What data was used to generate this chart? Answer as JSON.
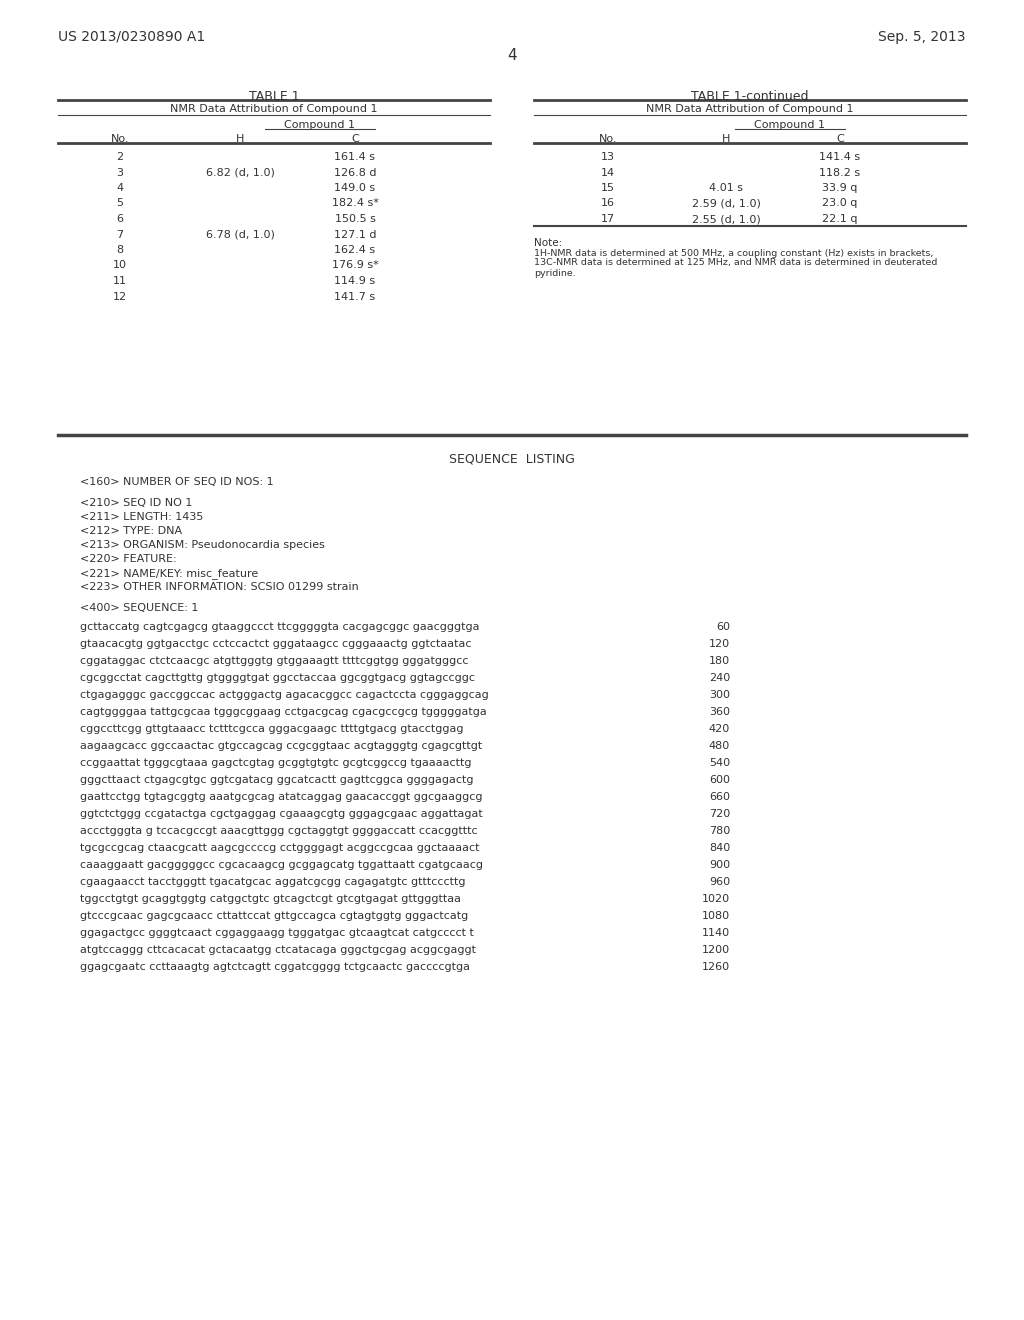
{
  "bg_color": "#ffffff",
  "header_left": "US 2013/0230890 A1",
  "header_right": "Sep. 5, 2013",
  "page_number": "4",
  "table1_title": "TABLE 1",
  "table1cont_title": "TABLE 1-continued",
  "table1_subtitle": "NMR Data Attribution of Compound 1",
  "table1cont_subtitle": "NMR Data Attribution of Compound 1",
  "compound_label": "Compound 1",
  "table1_rows": [
    [
      "2",
      "",
      "161.4 s"
    ],
    [
      "3",
      "6.82 (d, 1.0)",
      "126.8 d"
    ],
    [
      "4",
      "",
      "149.0 s"
    ],
    [
      "5",
      "",
      "182.4 s*"
    ],
    [
      "6",
      "",
      "150.5 s"
    ],
    [
      "7",
      "6.78 (d, 1.0)",
      "127.1 d"
    ],
    [
      "8",
      "",
      "162.4 s"
    ],
    [
      "10",
      "",
      "176.9 s*"
    ],
    [
      "11",
      "",
      "114.9 s"
    ],
    [
      "12",
      "",
      "141.7 s"
    ]
  ],
  "table1cont_rows": [
    [
      "13",
      "",
      "141.4 s"
    ],
    [
      "14",
      "",
      "118.2 s"
    ],
    [
      "15",
      "4.01 s",
      "33.9 q"
    ],
    [
      "16",
      "2.59 (d, 1.0)",
      "23.0 q"
    ],
    [
      "17",
      "2.55 (d, 1.0)",
      "22.1 q"
    ]
  ],
  "note_label": "Note:",
  "note_lines": [
    "1H-NMR data is determined at 500 MHz, a coupling constant (Hz) exists in brackets,",
    "13C-NMR data is determined at 125 MHz, and NMR data is determined in deuterated",
    "pyridine."
  ],
  "seq_listing_label": "SEQUENCE  LISTING",
  "seq_header_lines": [
    "<160> NUMBER OF SEQ ID NOS: 1",
    "",
    "<210> SEQ ID NO 1",
    "<211> LENGTH: 1435",
    "<212> TYPE: DNA",
    "<213> ORGANISM: Pseudonocardia species",
    "<220> FEATURE:",
    "<221> NAME/KEY: misc_feature",
    "<223> OTHER INFORMATION: SCSIO 01299 strain",
    "",
    "<400> SEQUENCE: 1"
  ],
  "dna_lines": [
    [
      "gcttaccatg cagtcgagcg gtaaggccct ttcgggggta cacgagcggc gaacgggtga",
      "60"
    ],
    [
      "gtaacacgtg ggtgacctgc cctccactct gggataagcc cgggaaactg ggtctaatac",
      "120"
    ],
    [
      "cggataggac ctctcaacgc atgttgggtg gtggaaagtt ttttcggtgg gggatgggcc",
      "180"
    ],
    [
      "cgcggcctat cagcttgttg gtggggtgat ggcctaccaa ggcggtgacg ggtagccggc",
      "240"
    ],
    [
      "ctgagagggc gaccggccac actgggactg agacacggcc cagactccta cgggaggcag",
      "300"
    ],
    [
      "cagtggggaa tattgcgcaa tgggcggaag cctgacgcag cgacgccgcg tgggggatga",
      "360"
    ],
    [
      "cggccttcgg gttgtaaacc tctttcgcca gggacgaagc ttttgtgacg gtacctggag",
      "420"
    ],
    [
      "aagaagcacc ggccaactac gtgccagcag ccgcggtaac acgtagggtg cgagcgttgt",
      "480"
    ],
    [
      "ccggaattat tgggcgtaaa gagctcgtag gcggtgtgtc gcgtcggccg tgaaaacttg",
      "540"
    ],
    [
      "gggcttaact ctgagcgtgc ggtcgatacg ggcatcactt gagttcggca ggggagactg",
      "600"
    ],
    [
      "gaattcctgg tgtagcggtg aaatgcgcag atatcaggag gaacaccggt ggcgaaggcg",
      "660"
    ],
    [
      "ggtctctggg ccgatactga cgctgaggag cgaaagcgtg gggagcgaac aggattagat",
      "720"
    ],
    [
      "accctgggta g tccacgccgt aaacgttggg cgctaggtgt ggggaccatt ccacggtttc",
      "780"
    ],
    [
      "tgcgccgcag ctaacgcatt aagcgccccg cctggggagt acggccgcaa ggctaaaact",
      "840"
    ],
    [
      "caaaggaatt gacgggggcc cgcacaagcg gcggagcatg tggattaatt cgatgcaacg",
      "900"
    ],
    [
      "cgaagaacct tacctgggtt tgacatgcac aggatcgcgg cagagatgtc gtttcccttg",
      "960"
    ],
    [
      "tggcctgtgt gcaggtggtg catggctgtc gtcagctcgt gtcgtgagat gttgggttaa",
      "1020"
    ],
    [
      "gtcccgcaac gagcgcaacc cttattccat gttgccagca cgtagtggtg gggactcatg",
      "1080"
    ],
    [
      "ggagactgcc ggggtcaact cggaggaagg tgggatgac gtcaagtcat catgcccct t",
      "1140"
    ],
    [
      "atgtccaggg cttcacacat gctacaatgg ctcatacaga gggctgcgag acggcgaggt",
      "1200"
    ],
    [
      "ggagcgaatc ccttaaagtg agtctcagtt cggatcgggg tctgcaactc gaccccgtga",
      "1260"
    ]
  ]
}
